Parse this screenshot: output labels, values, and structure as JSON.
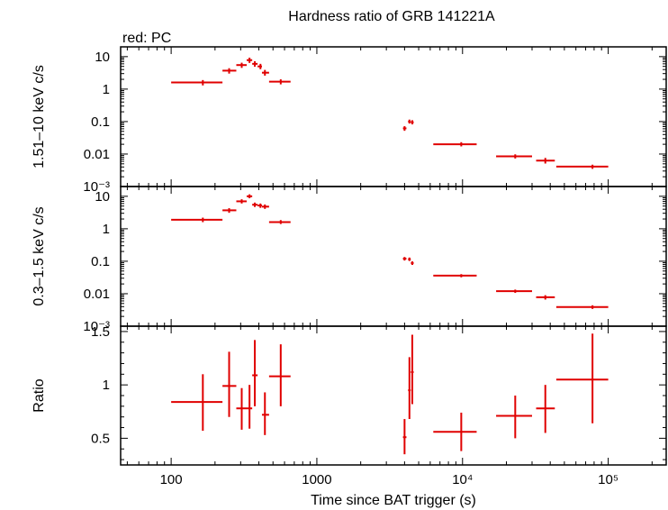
{
  "chart_data": {
    "type": "scatter",
    "title": "Hardness ratio of GRB 141221A",
    "legend_note": "red: PC",
    "xlabel": "Time since BAT trigger (s)",
    "x_scale": "log",
    "xlim": [
      45,
      250000
    ],
    "x_tick_labels": [
      "100",
      "1000",
      "10⁴",
      "10⁵"
    ],
    "color": "#e00000",
    "panels": [
      {
        "id": "hard",
        "ylabel": "1.51–10 keV c/s",
        "y_scale": "log",
        "ylim": [
          0.001,
          20
        ],
        "y_tick_labels": [
          "10",
          "1",
          "0.1",
          "0.01",
          "10⁻³"
        ],
        "points": [
          {
            "x": 165,
            "xlo": 100,
            "xhi": 225,
            "y": 1.6,
            "ylo": 1.3,
            "yhi": 1.9
          },
          {
            "x": 250,
            "xlo": 225,
            "xhi": 280,
            "y": 3.7,
            "ylo": 3.0,
            "yhi": 4.4
          },
          {
            "x": 305,
            "xlo": 280,
            "xhi": 330,
            "y": 5.5,
            "ylo": 4.5,
            "yhi": 6.5
          },
          {
            "x": 345,
            "xlo": 330,
            "xhi": 360,
            "y": 7.8,
            "ylo": 6.4,
            "yhi": 9.3
          },
          {
            "x": 375,
            "xlo": 360,
            "xhi": 392,
            "y": 6.0,
            "ylo": 4.9,
            "yhi": 7.2
          },
          {
            "x": 410,
            "xlo": 392,
            "xhi": 420,
            "y": 5.0,
            "ylo": 4.1,
            "yhi": 6.0
          },
          {
            "x": 440,
            "xlo": 420,
            "xhi": 470,
            "y": 3.2,
            "ylo": 2.6,
            "yhi": 3.9
          },
          {
            "x": 565,
            "xlo": 470,
            "xhi": 660,
            "y": 1.7,
            "ylo": 1.4,
            "yhi": 2.0
          },
          {
            "x": 4000,
            "xlo": 3900,
            "xhi": 4120,
            "y": 0.062,
            "ylo": 0.052,
            "yhi": 0.072
          },
          {
            "x": 4320,
            "xlo": 4230,
            "xhi": 4410,
            "y": 0.1,
            "ylo": 0.087,
            "yhi": 0.115
          },
          {
            "x": 4520,
            "xlo": 4420,
            "xhi": 4620,
            "y": 0.095,
            "ylo": 0.082,
            "yhi": 0.11
          },
          {
            "x": 9800,
            "xlo": 6300,
            "xhi": 12500,
            "y": 0.02,
            "ylo": 0.0172,
            "yhi": 0.0232
          },
          {
            "x": 23000,
            "xlo": 17000,
            "xhi": 30000,
            "y": 0.0085,
            "ylo": 0.0073,
            "yhi": 0.0098
          },
          {
            "x": 37000,
            "xlo": 32000,
            "xhi": 43000,
            "y": 0.0063,
            "ylo": 0.0051,
            "yhi": 0.0076
          },
          {
            "x": 78000,
            "xlo": 44000,
            "xhi": 100000,
            "y": 0.0041,
            "ylo": 0.0035,
            "yhi": 0.0047
          }
        ]
      },
      {
        "id": "soft",
        "ylabel": "0.3–1.5 keV c/s",
        "y_scale": "log",
        "ylim": [
          0.001,
          20
        ],
        "y_tick_labels": [
          "10",
          "1",
          "0.1",
          "0.01",
          "10⁻³"
        ],
        "points": [
          {
            "x": 165,
            "xlo": 100,
            "xhi": 225,
            "y": 1.9,
            "ylo": 1.6,
            "yhi": 2.2
          },
          {
            "x": 250,
            "xlo": 225,
            "xhi": 280,
            "y": 3.7,
            "ylo": 3.1,
            "yhi": 4.3
          },
          {
            "x": 305,
            "xlo": 280,
            "xhi": 330,
            "y": 7.0,
            "ylo": 6.0,
            "yhi": 8.1
          },
          {
            "x": 345,
            "xlo": 330,
            "xhi": 360,
            "y": 10.0,
            "ylo": 8.7,
            "yhi": 11.5
          },
          {
            "x": 375,
            "xlo": 360,
            "xhi": 392,
            "y": 5.5,
            "ylo": 4.7,
            "yhi": 6.4
          },
          {
            "x": 410,
            "xlo": 392,
            "xhi": 420,
            "y": 5.2,
            "ylo": 4.4,
            "yhi": 6.0
          },
          {
            "x": 440,
            "xlo": 420,
            "xhi": 470,
            "y": 4.8,
            "ylo": 4.1,
            "yhi": 5.6
          },
          {
            "x": 565,
            "xlo": 470,
            "xhi": 660,
            "y": 1.6,
            "ylo": 1.4,
            "yhi": 1.85
          },
          {
            "x": 4000,
            "xlo": 3900,
            "xhi": 4120,
            "y": 0.12,
            "ylo": 0.105,
            "yhi": 0.135
          },
          {
            "x": 4320,
            "xlo": 4230,
            "xhi": 4410,
            "y": 0.115,
            "ylo": 0.102,
            "yhi": 0.13
          },
          {
            "x": 4520,
            "xlo": 4420,
            "xhi": 4620,
            "y": 0.088,
            "ylo": 0.077,
            "yhi": 0.099
          },
          {
            "x": 9800,
            "xlo": 6300,
            "xhi": 12500,
            "y": 0.036,
            "ylo": 0.032,
            "yhi": 0.04
          },
          {
            "x": 23000,
            "xlo": 17000,
            "xhi": 30000,
            "y": 0.012,
            "ylo": 0.0106,
            "yhi": 0.0134
          },
          {
            "x": 37000,
            "xlo": 32000,
            "xhi": 43000,
            "y": 0.0078,
            "ylo": 0.0066,
            "yhi": 0.009
          },
          {
            "x": 78000,
            "xlo": 44000,
            "xhi": 100000,
            "y": 0.0039,
            "ylo": 0.0034,
            "yhi": 0.0044
          }
        ]
      },
      {
        "id": "ratio",
        "ylabel": "Ratio",
        "y_scale": "linear",
        "ylim": [
          0.25,
          1.55
        ],
        "y_ticks": [
          0.5,
          1,
          1.5
        ],
        "y_tick_labels": [
          "0.5",
          "1",
          "1.5"
        ],
        "points": [
          {
            "x": 165,
            "xlo": 100,
            "xhi": 225,
            "y": 0.84,
            "ylo": 0.57,
            "yhi": 1.1
          },
          {
            "x": 250,
            "xlo": 225,
            "xhi": 280,
            "y": 0.99,
            "ylo": 0.7,
            "yhi": 1.31
          },
          {
            "x": 305,
            "xlo": 280,
            "xhi": 330,
            "y": 0.78,
            "ylo": 0.58,
            "yhi": 0.97
          },
          {
            "x": 345,
            "xlo": 330,
            "xhi": 360,
            "y": 0.78,
            "ylo": 0.59,
            "yhi": 1.0
          },
          {
            "x": 375,
            "xlo": 360,
            "xhi": 392,
            "y": 1.09,
            "ylo": 0.8,
            "yhi": 1.42
          },
          {
            "x": 440,
            "xlo": 420,
            "xhi": 470,
            "y": 0.72,
            "ylo": 0.53,
            "yhi": 0.93
          },
          {
            "x": 565,
            "xlo": 470,
            "xhi": 660,
            "y": 1.08,
            "ylo": 0.8,
            "yhi": 1.38
          },
          {
            "x": 4000,
            "xlo": 3900,
            "xhi": 4120,
            "y": 0.51,
            "ylo": 0.35,
            "yhi": 0.68
          },
          {
            "x": 4320,
            "xlo": 4230,
            "xhi": 4410,
            "y": 0.95,
            "ylo": 0.68,
            "yhi": 1.26
          },
          {
            "x": 4520,
            "xlo": 4420,
            "xhi": 4620,
            "y": 1.12,
            "ylo": 0.82,
            "yhi": 1.47
          },
          {
            "x": 9800,
            "xlo": 6300,
            "xhi": 12500,
            "y": 0.56,
            "ylo": 0.38,
            "yhi": 0.74
          },
          {
            "x": 23000,
            "xlo": 17000,
            "xhi": 30000,
            "y": 0.71,
            "ylo": 0.5,
            "yhi": 0.9
          },
          {
            "x": 37000,
            "xlo": 32000,
            "xhi": 43000,
            "y": 0.78,
            "ylo": 0.55,
            "yhi": 1.0
          },
          {
            "x": 78000,
            "xlo": 44000,
            "xhi": 100000,
            "y": 1.05,
            "ylo": 0.64,
            "yhi": 1.48
          }
        ]
      }
    ]
  }
}
